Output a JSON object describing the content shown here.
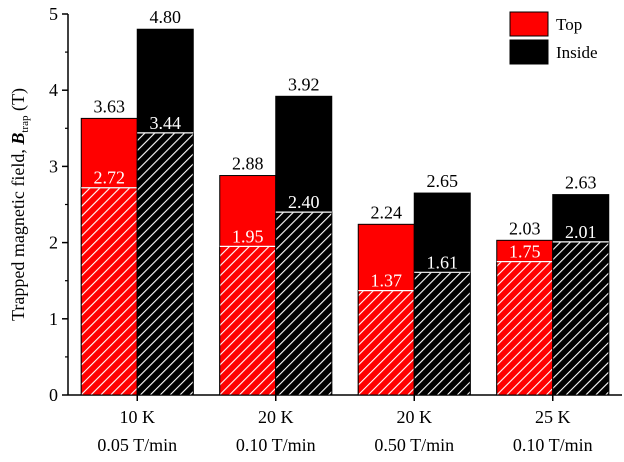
{
  "chart_data": {
    "type": "bar",
    "categories": [
      [
        "10 K",
        "0.05 T/min"
      ],
      [
        "20 K",
        "0.10 T/min"
      ],
      [
        "20 K",
        "0.50 T/min"
      ],
      [
        "25 K",
        "0.10 T/min"
      ]
    ],
    "series": [
      {
        "name": "Top",
        "color": "#ff0000",
        "values": [
          3.63,
          2.88,
          2.24,
          2.03
        ],
        "hatched_values": [
          2.72,
          1.95,
          1.37,
          1.75
        ]
      },
      {
        "name": "Inside",
        "color": "#000000",
        "values": [
          4.8,
          3.92,
          2.65,
          2.63
        ],
        "hatched_values": [
          3.44,
          2.4,
          1.61,
          2.01
        ]
      }
    ],
    "value_labels": [
      [
        "3.63",
        "4.80"
      ],
      [
        "2.88",
        "3.92"
      ],
      [
        "2.24",
        "2.65"
      ],
      [
        "2.03",
        "2.63"
      ]
    ],
    "hatched_labels": [
      [
        "2.72",
        "3.44"
      ],
      [
        "1.95",
        "2.40"
      ],
      [
        "1.37",
        "1.61"
      ],
      [
        "1.75",
        "2.01"
      ]
    ],
    "ylabel": {
      "prefix": "Trapped magnetic field, ",
      "symbol": "B",
      "subscript": "trap",
      "suffix": " (T)"
    },
    "ylim": [
      0,
      5
    ],
    "yticks": [
      "0",
      "1",
      "2",
      "3",
      "4",
      "5"
    ],
    "legend_position": "top-right",
    "grid": false
  }
}
